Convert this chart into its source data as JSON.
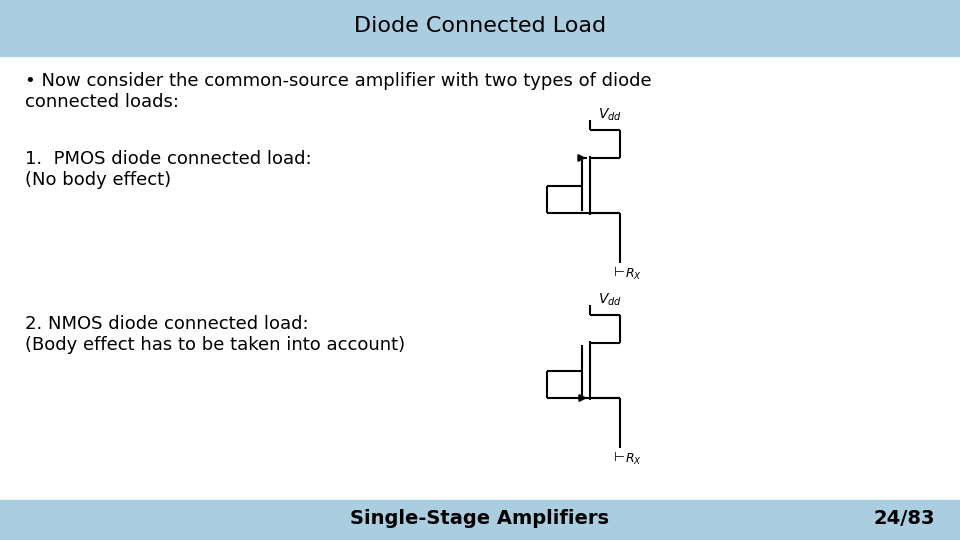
{
  "title": "Diode Connected Load",
  "title_fontsize": 16,
  "subtitle_line1": "• Now consider the common-source amplifier with two types of diode",
  "subtitle_line2": "connected loads:",
  "label1_line1": "1.  PMOS diode connected load:",
  "label1_line2": "(No body effect)",
  "label2_line1": "2. NMOS diode connected load:",
  "label2_line2": "(Body effect has to be taken into account)",
  "footer_center": "Single-Stage Amplifiers",
  "footer_right": "24/83",
  "body_fontsize": 13,
  "footer_fontsize": 14,
  "bg_color": "#ffffff",
  "bar_color": "#aacde0",
  "text_color": "#000000",
  "circuit_color": "#000000",
  "circuit_lw": 1.5
}
